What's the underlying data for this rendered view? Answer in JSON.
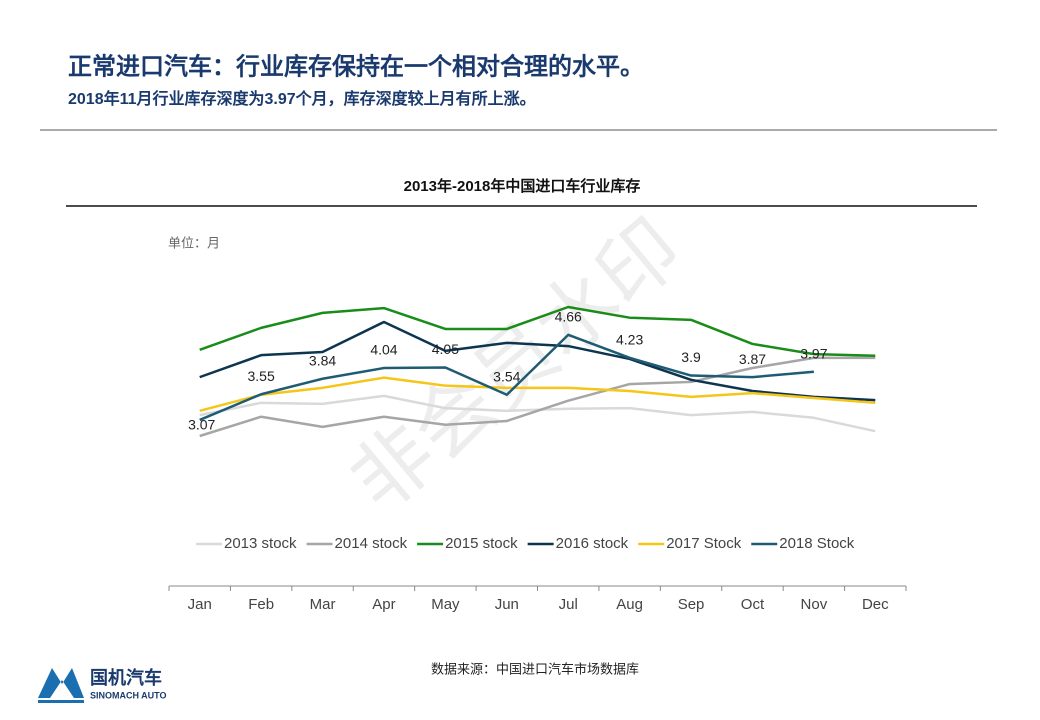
{
  "header": {
    "title": "正常进口汽车：行业库存保持在一个相对合理的水平。",
    "subtitle": "2018年11月行业库存深度为3.97个月，库存深度较上月有所上涨。"
  },
  "chart_data": {
    "type": "line",
    "title": "2013年-2018年中国进口车行业库存",
    "unit": "单位：月",
    "categories": [
      "Jan",
      "Feb",
      "Mar",
      "Apr",
      "May",
      "Jun",
      "Jul",
      "Aug",
      "Sep",
      "Oct",
      "Nov",
      "Dec"
    ],
    "series": [
      {
        "name": "2013 stock",
        "color": "#d9d9d9",
        "values": [
          3.16,
          3.39,
          3.37,
          3.52,
          3.29,
          3.24,
          3.28,
          3.29,
          3.16,
          3.22,
          3.11,
          2.86
        ]
      },
      {
        "name": "2014 stock",
        "color": "#a6a6a6",
        "values": [
          2.77,
          3.13,
          2.94,
          3.13,
          2.98,
          3.05,
          3.43,
          3.74,
          3.78,
          4.04,
          4.23,
          4.23
        ]
      },
      {
        "name": "2015 stock",
        "color": "#1a8c1a",
        "values": [
          4.38,
          4.79,
          5.07,
          5.16,
          4.77,
          4.77,
          5.18,
          4.98,
          4.94,
          4.49,
          4.3,
          4.27
        ]
      },
      {
        "name": "2016 stock",
        "color": "#0d3550",
        "values": [
          3.87,
          4.28,
          4.34,
          4.9,
          4.36,
          4.51,
          4.45,
          4.21,
          3.82,
          3.61,
          3.5,
          3.44
        ]
      },
      {
        "name": "2017 Stock",
        "color": "#f5c518",
        "values": [
          3.24,
          3.54,
          3.67,
          3.86,
          3.71,
          3.67,
          3.67,
          3.61,
          3.5,
          3.57,
          3.48,
          3.39
        ]
      },
      {
        "name": "2018 Stock",
        "color": "#1f5c73",
        "values": [
          3.07,
          3.55,
          3.84,
          4.04,
          4.05,
          3.54,
          4.66,
          4.23,
          3.9,
          3.87,
          3.97,
          null
        ],
        "show_labels": true
      }
    ],
    "watermark": "非会员水印"
  },
  "footer": {
    "source": "数据来源：中国进口汽车市场数据库",
    "logo_cn": "国机汽车",
    "logo_en": "SINOMACH AUTO"
  }
}
